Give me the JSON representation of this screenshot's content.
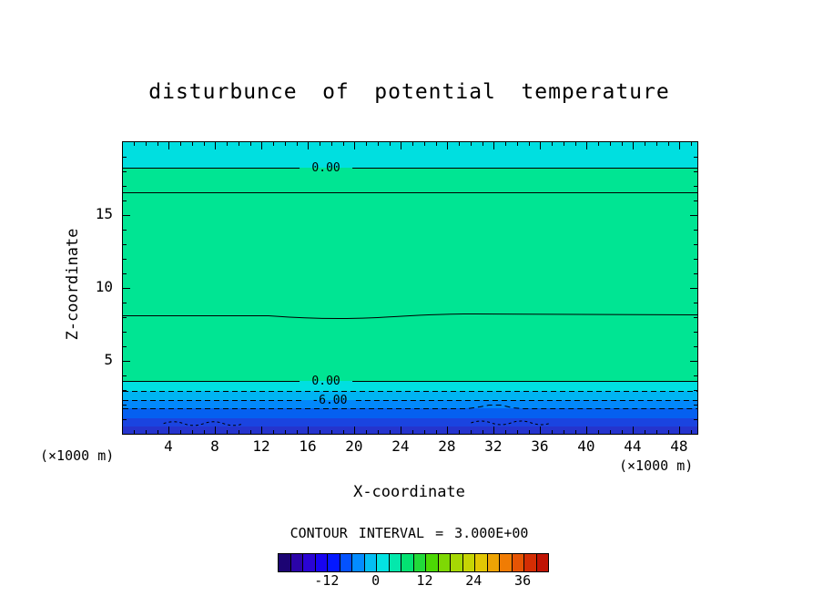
{
  "title": "disturbunce of potential temperature",
  "axes": {
    "x_label": "X-coordinate",
    "z_label": "Z-coordinate",
    "unit_left": "(×1000 m)",
    "unit_right": "(×1000 m)",
    "x_min": 0,
    "x_max": 49.5,
    "x_minor_step": 1,
    "x_major_step": 4,
    "x_tick_labels": [
      4,
      8,
      12,
      16,
      20,
      24,
      28,
      32,
      36,
      40,
      44,
      48
    ],
    "z_min": 0,
    "z_max": 20,
    "z_minor_step": 1,
    "z_major_step": 5,
    "z_tick_labels": [
      5,
      10,
      15
    ]
  },
  "contour_note": "CONTOUR INTERVAL = 3.000E+00",
  "colorbar": {
    "min": -24,
    "max": 42,
    "step": 3,
    "tick_labels": [
      "-12",
      "0",
      "12",
      "24",
      "36"
    ],
    "colors": [
      "#1c0473",
      "#2b04a8",
      "#2a04d4",
      "#1804f0",
      "#0418ff",
      "#0452ff",
      "#048cff",
      "#04bef4",
      "#04e2e2",
      "#04e8ac",
      "#04e272",
      "#22da3a",
      "#4cd804",
      "#7ed804",
      "#a6d804",
      "#c6d404",
      "#e2c604",
      "#eea404",
      "#f07c04",
      "#e65404",
      "#d42e04",
      "#c01404"
    ]
  },
  "chart_data": {
    "type": "heatmap",
    "title": "disturbunce of potential temperature",
    "xlabel": "X-coordinate (×1000 m)",
    "ylabel": "Z-coordinate (×1000 m)",
    "x_range": [
      0,
      49.5
    ],
    "z_range": [
      0,
      20
    ],
    "contour_interval": 3.0,
    "legend_position": "bottom",
    "fill_bands": [
      {
        "z_from": 18.25,
        "z_to": 20.0,
        "approx_value": "-3 to 0",
        "color": "#00dfe0"
      },
      {
        "z_from": 3.63,
        "z_to": 18.25,
        "approx_value": "0 to 3",
        "color": "#00e593"
      },
      {
        "z_from": 2.94,
        "z_to": 3.63,
        "approx_value": "-3 to 0",
        "color": "#00dfe0"
      },
      {
        "z_from": 2.31,
        "z_to": 2.94,
        "approx_value": "-6 to -3",
        "color": "#00b4f2"
      },
      {
        "z_from": 1.75,
        "z_to": 2.31,
        "approx_value": "-9 to -6",
        "color": "#0288fb"
      },
      {
        "z_from": 1.06,
        "z_to": 1.75,
        "approx_value": "-12 to -9",
        "color": "#0560f0"
      },
      {
        "z_from": 0.5,
        "z_to": 1.06,
        "approx_value": "-15 to -12",
        "color": "#1a44e0"
      },
      {
        "z_from": 0.0,
        "z_to": 0.5,
        "approx_value": "-18 to -15",
        "color": "#2534cd"
      }
    ],
    "contour_lines": [
      {
        "z": 18.25,
        "style": "solid",
        "label": "0.00",
        "label_x": 17.5,
        "wavy": false
      },
      {
        "z": 16.55,
        "style": "solid",
        "label": null,
        "label_x": null,
        "wavy": false
      },
      {
        "z": 8.1,
        "style": "solid",
        "label": null,
        "label_x": null,
        "wavy": true
      },
      {
        "z": 3.63,
        "style": "solid",
        "label": "0.00",
        "label_x": 17.5,
        "wavy": false
      },
      {
        "z": 2.94,
        "style": "dashed",
        "label": null,
        "label_x": null,
        "wavy": false
      },
      {
        "z": 2.31,
        "style": "dashed",
        "label": "-6.00",
        "label_x": 17.8,
        "wavy": false
      },
      {
        "z": 1.75,
        "style": "dashed",
        "label": null,
        "label_x": null,
        "wavy": true
      }
    ],
    "ground_contours": [
      {
        "x_from": 3.5,
        "x_to": 10.0,
        "z": 0.7
      },
      {
        "x_from": 30.0,
        "x_to": 37.0,
        "z": 0.75
      }
    ]
  }
}
